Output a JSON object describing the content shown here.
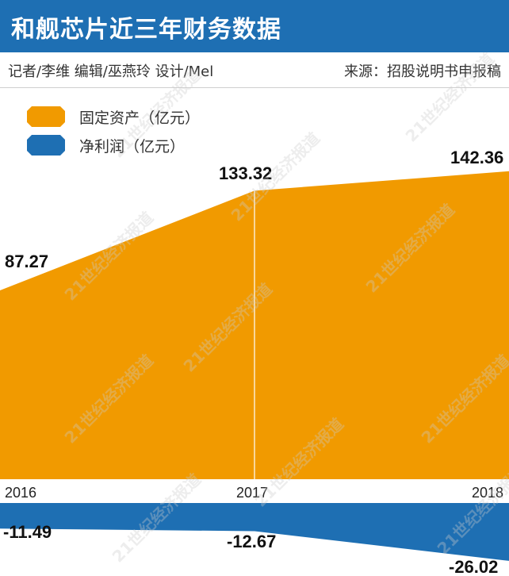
{
  "header": {
    "title": "和舰芯片近三年财务数据"
  },
  "credits": {
    "left": "记者/李维  编辑/巫燕玲  设计/Mel",
    "right": "来源：招股说明书申报稿"
  },
  "watermark": "21世纪经济报道",
  "colors": {
    "title_bar": "#1e6fb3",
    "fixed_assets": "#f19a00",
    "net_profit": "#1e6fb3"
  },
  "legend": [
    {
      "label": "固定资产（亿元）",
      "color": "#f19a00"
    },
    {
      "label": "净利润（亿元）",
      "color": "#1e6fb3"
    }
  ],
  "chart_data": {
    "type": "area",
    "categories": [
      "2016",
      "2017",
      "2018"
    ],
    "series": [
      {
        "name": "固定资产（亿元）",
        "values": [
          87.27,
          133.32,
          142.36
        ],
        "labels": [
          "87.27",
          "133.32",
          "142.36"
        ]
      },
      {
        "name": "净利润（亿元）",
        "values": [
          -11.49,
          -12.67,
          -26.02
        ],
        "labels": [
          "-11.49",
          "-12.67",
          "-26.02"
        ]
      }
    ],
    "title": "和舰芯片近三年财务数据",
    "xlabel": "",
    "ylabel": ""
  }
}
